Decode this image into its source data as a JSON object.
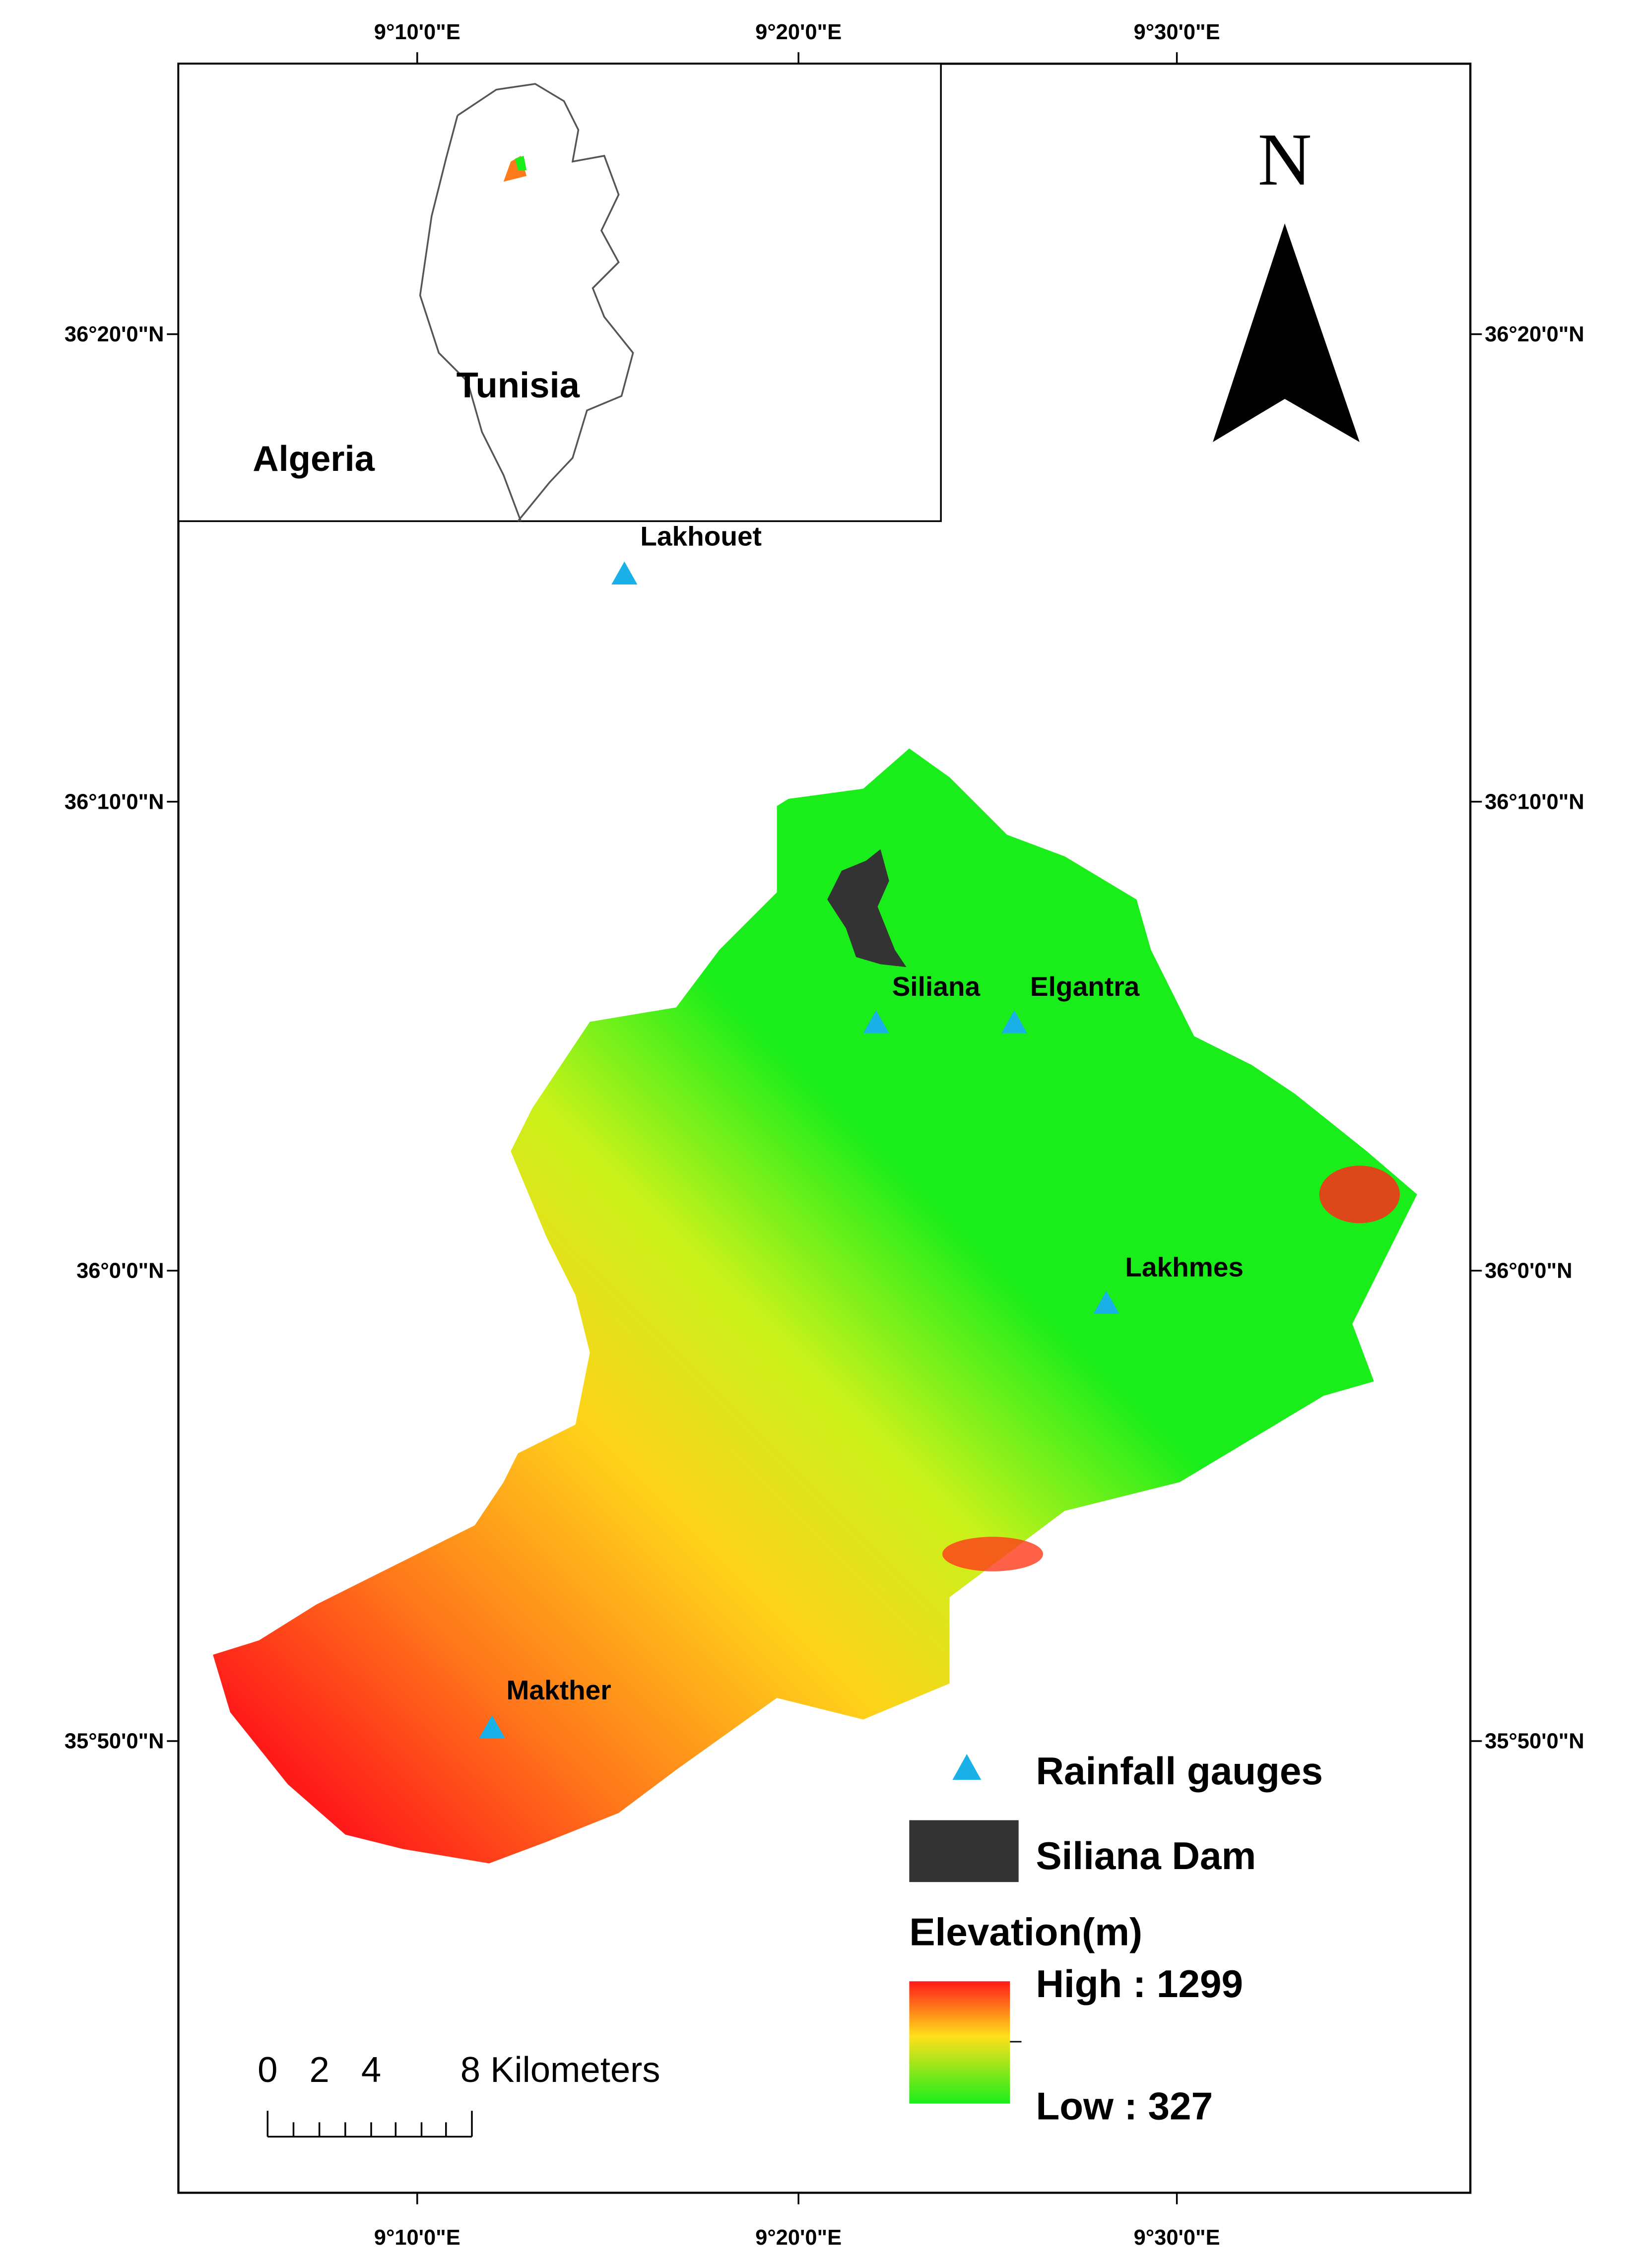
{
  "graticule": {
    "top": [
      "9°10'0\"E",
      "9°20'0\"E",
      "9°30'0\"E"
    ],
    "bottom": [
      "9°10'0\"E",
      "9°20'0\"E",
      "9°30'0\"E"
    ],
    "left": [
      "36°20'0\"N",
      "36°10'0\"N",
      "36°0'0\"N",
      "35°50'0\"N"
    ],
    "right": [
      "36°20'0\"N",
      "36°10'0\"N",
      "36°0'0\"N",
      "35°50'0\"N"
    ]
  },
  "inset": {
    "country": "Tunisia",
    "neighbor": "Algeria"
  },
  "north_arrow": "N",
  "stations": [
    {
      "name": "Lakhouet"
    },
    {
      "name": "Siliana"
    },
    {
      "name": "Elgantra"
    },
    {
      "name": "Lakhmes"
    },
    {
      "name": "Makther"
    }
  ],
  "legend": {
    "gauges": "Rainfall gauges",
    "dam": "Siliana Dam",
    "elevation_title": "Elevation(m)",
    "high": "High : 1299",
    "low": "Low : 327"
  },
  "scale_bar": {
    "labels": [
      "0",
      "2",
      "4",
      "8 Kilometers"
    ]
  }
}
